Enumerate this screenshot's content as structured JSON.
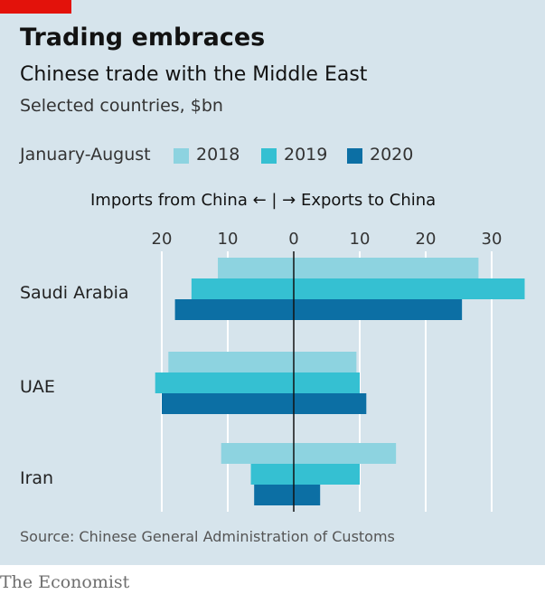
{
  "title": "Trading embraces",
  "subtitle": "Chinese trade with the Middle East",
  "units": "Selected countries, $bn",
  "legend": {
    "period": "January-August",
    "items": [
      {
        "label": "2018",
        "color": "#8dd3e0"
      },
      {
        "label": "2019",
        "color": "#35c0d2"
      },
      {
        "label": "2020",
        "color": "#0c6fa4"
      }
    ]
  },
  "axis_direction": "Imports from China ← | → Exports to China",
  "source": "Source: Chinese General Administration of Customs",
  "brand": "The Economist",
  "chart_data": {
    "type": "bar",
    "orientation": "diverging-horizontal",
    "categories": [
      "Saudi Arabia",
      "UAE",
      "Iran"
    ],
    "x_ticks": [
      {
        "value": -20,
        "label": "20"
      },
      {
        "value": -10,
        "label": "10"
      },
      {
        "value": 0,
        "label": "0"
      },
      {
        "value": 10,
        "label": "10"
      },
      {
        "value": 20,
        "label": "20"
      },
      {
        "value": 30,
        "label": "30"
      }
    ],
    "xlim": [
      -22,
      35.5
    ],
    "grid": true,
    "series": [
      {
        "name": "2018",
        "imports_from_china": [
          11.5,
          19,
          11
        ],
        "exports_to_china": [
          28,
          9.5,
          15.5
        ]
      },
      {
        "name": "2019",
        "imports_from_china": [
          15.5,
          21,
          6.5
        ],
        "exports_to_china": [
          35,
          10,
          10
        ]
      },
      {
        "name": "2020",
        "imports_from_china": [
          18,
          20,
          6
        ],
        "exports_to_china": [
          25.5,
          11,
          4
        ]
      }
    ]
  }
}
